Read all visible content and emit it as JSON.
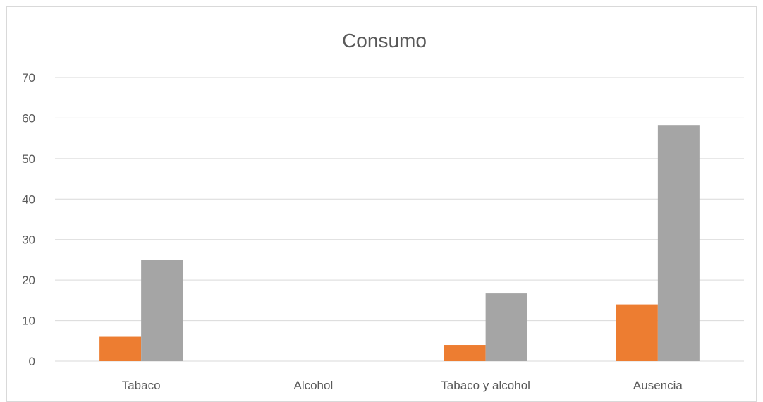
{
  "chart_data": {
    "type": "bar",
    "title": "Consumo",
    "xlabel": "",
    "ylabel": "",
    "categories": [
      "Tabaco",
      "Alcohol",
      "Tabaco y alcohol",
      "Ausencia"
    ],
    "series": [
      {
        "values": [
          6,
          0,
          4,
          14
        ],
        "color": "#ed7d31"
      },
      {
        "values": [
          25,
          0,
          16.7,
          58.3
        ],
        "color": "#a5a5a5"
      }
    ],
    "ylim": [
      0,
      70
    ],
    "yticks": [
      "0",
      "10",
      "20",
      "30",
      "40",
      "50",
      "60",
      "70"
    ],
    "grid": true,
    "legend": "none"
  }
}
